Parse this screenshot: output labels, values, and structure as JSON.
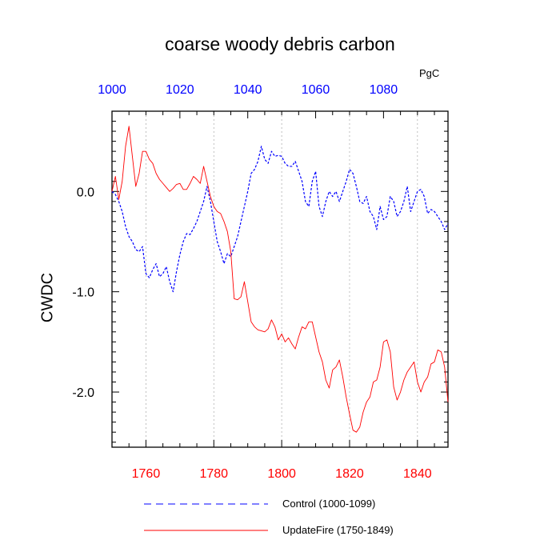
{
  "chart_data": {
    "type": "line",
    "title": "coarse woody debris carbon",
    "units": "PgC",
    "ylabel": "CWDC",
    "ylim": [
      -2.55,
      0.8
    ],
    "yticks": [
      0.0,
      -1.0,
      -2.0
    ],
    "ytick_labels": [
      "0.0",
      "-1.0",
      "-2.0"
    ],
    "x_bottom": {
      "range": [
        1750,
        1849
      ],
      "ticks": [
        1760,
        1780,
        1800,
        1820,
        1840
      ],
      "tick_labels": [
        "1760",
        "1780",
        "1800",
        "1820",
        "1840"
      ],
      "color": "#ff0000"
    },
    "x_top": {
      "range": [
        1000,
        1099
      ],
      "ticks": [
        1000,
        1020,
        1040,
        1060,
        1080
      ],
      "tick_labels": [
        "1000",
        "1020",
        "1040",
        "1060",
        "1080"
      ],
      "color": "#0000ff"
    },
    "grid": "vertical dashed",
    "series": [
      {
        "name": "Control (1000-1099)",
        "color": "#0000ff",
        "dash": "dashed",
        "axis": "top",
        "x_start": 1000,
        "values": [
          0.0,
          -0.03,
          -0.1,
          -0.2,
          -0.35,
          -0.45,
          -0.5,
          -0.58,
          -0.6,
          -0.55,
          -0.82,
          -0.86,
          -0.78,
          -0.72,
          -0.85,
          -0.82,
          -0.75,
          -0.9,
          -1.0,
          -0.8,
          -0.63,
          -0.5,
          -0.42,
          -0.43,
          -0.37,
          -0.3,
          -0.2,
          -0.1,
          0.05,
          -0.1,
          -0.3,
          -0.5,
          -0.6,
          -0.72,
          -0.62,
          -0.65,
          -0.55,
          -0.45,
          -0.3,
          -0.15,
          0.0,
          0.18,
          0.22,
          0.3,
          0.45,
          0.32,
          0.28,
          0.4,
          0.35,
          0.36,
          0.35,
          0.28,
          0.25,
          0.25,
          0.3,
          0.2,
          0.1,
          -0.1,
          -0.15,
          0.1,
          0.2,
          -0.15,
          -0.25,
          -0.1,
          0.0,
          -0.05,
          0.0,
          -0.1,
          0.0,
          0.1,
          0.22,
          0.18,
          0.05,
          -0.1,
          -0.12,
          -0.05,
          -0.2,
          -0.25,
          -0.38,
          -0.15,
          -0.28,
          -0.25,
          -0.05,
          -0.1,
          -0.25,
          -0.2,
          -0.1,
          0.05,
          -0.2,
          -0.1,
          0.0,
          0.02,
          -0.05,
          -0.22,
          -0.18,
          -0.2,
          -0.25,
          -0.3,
          -0.38,
          -0.32
        ]
      },
      {
        "name": "UpdateFire (1750-1849)",
        "color": "#ff0000",
        "dash": "solid",
        "axis": "bottom",
        "x_start": 1750,
        "values": [
          0.0,
          0.15,
          -0.08,
          0.1,
          0.45,
          0.65,
          0.35,
          0.05,
          0.18,
          0.4,
          0.4,
          0.32,
          0.28,
          0.18,
          0.12,
          0.08,
          0.04,
          0.0,
          0.03,
          0.07,
          0.08,
          0.02,
          0.02,
          0.08,
          0.15,
          0.12,
          0.08,
          0.25,
          0.1,
          -0.05,
          -0.15,
          -0.2,
          -0.22,
          -0.3,
          -0.4,
          -0.6,
          -1.07,
          -1.08,
          -1.05,
          -0.9,
          -1.1,
          -1.3,
          -1.35,
          -1.38,
          -1.39,
          -1.4,
          -1.37,
          -1.28,
          -1.35,
          -1.48,
          -1.42,
          -1.5,
          -1.46,
          -1.52,
          -1.57,
          -1.45,
          -1.35,
          -1.37,
          -1.3,
          -1.3,
          -1.45,
          -1.6,
          -1.7,
          -1.88,
          -1.96,
          -1.78,
          -1.75,
          -1.68,
          -1.85,
          -2.05,
          -2.22,
          -2.38,
          -2.4,
          -2.35,
          -2.2,
          -2.1,
          -2.05,
          -1.9,
          -1.88,
          -1.75,
          -1.5,
          -1.48,
          -1.6,
          -1.95,
          -2.08,
          -2.0,
          -1.88,
          -1.8,
          -1.75,
          -1.7,
          -1.9,
          -2.0,
          -1.9,
          -1.85,
          -1.72,
          -1.7,
          -1.58,
          -1.6,
          -1.75,
          -2.1
        ]
      }
    ],
    "legend": {
      "position": "bottom",
      "entries": [
        "Control (1000-1099)",
        "UpdateFire (1750-1849)"
      ]
    }
  }
}
